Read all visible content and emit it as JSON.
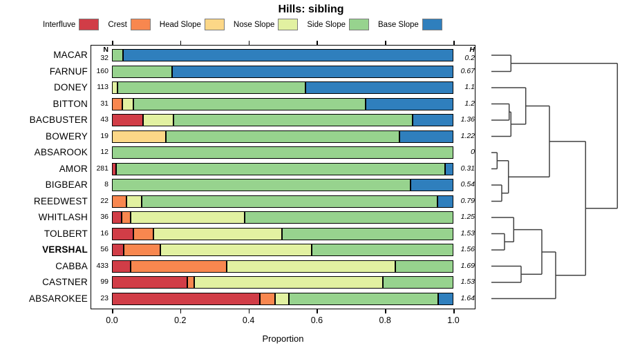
{
  "title": "Hills: sibling",
  "xlabel": "Proportion",
  "n_header": "N",
  "h_header": "H",
  "chart_data": {
    "type": "bar",
    "subtype": "horizontal-stacked-proportion-with-dendrogram",
    "title": "Hills: sibling",
    "xlabel": "Proportion",
    "xlim": [
      0.0,
      1.0
    ],
    "x_ticks": [
      "0.0",
      "0.2",
      "0.4",
      "0.6",
      "0.8",
      "1.0"
    ],
    "grid": false,
    "legend_position": "top",
    "legend": [
      {
        "label": "Interfluve",
        "color": "#d13d47"
      },
      {
        "label": "Crest",
        "color": "#f8874f"
      },
      {
        "label": "Head Slope",
        "color": "#fcd787"
      },
      {
        "label": "Nose Slope",
        "color": "#e2f1a1"
      },
      {
        "label": "Side Slope",
        "color": "#97d38e"
      },
      {
        "label": "Base Slope",
        "color": "#2f7fbd"
      }
    ],
    "categories": [
      "Interfluve",
      "Crest",
      "Head Slope",
      "Nose Slope",
      "Side Slope",
      "Base Slope"
    ],
    "rows": [
      {
        "label": "MACAR",
        "n": "32",
        "h": "0.2",
        "bold": false,
        "values": [
          0,
          0,
          0,
          0,
          0.032,
          0.968
        ]
      },
      {
        "label": "FARNUF",
        "n": "160",
        "h": "0.67",
        "bold": false,
        "values": [
          0,
          0,
          0,
          0,
          0.177,
          0.823
        ]
      },
      {
        "label": "DONEY",
        "n": "113",
        "h": "1.1",
        "bold": false,
        "values": [
          0,
          0,
          0,
          0.016,
          0.55,
          0.434
        ]
      },
      {
        "label": "BITTON",
        "n": "31",
        "h": "1.2",
        "bold": false,
        "values": [
          0,
          0.03,
          0,
          0.032,
          0.68,
          0.258
        ]
      },
      {
        "label": "BACBUSTER",
        "n": "43",
        "h": "1.36",
        "bold": false,
        "values": [
          0.092,
          0,
          0,
          0.088,
          0.7,
          0.12
        ]
      },
      {
        "label": "BOWERY",
        "n": "19",
        "h": "1.22",
        "bold": false,
        "values": [
          0,
          0,
          0.158,
          0,
          0.684,
          0.158
        ]
      },
      {
        "label": "ABSAROOK",
        "n": "12",
        "h": "0",
        "bold": false,
        "values": [
          0,
          0,
          0,
          0,
          1.0,
          0
        ]
      },
      {
        "label": "AMOR",
        "n": "281",
        "h": "0.31",
        "bold": false,
        "values": [
          0.013,
          0,
          0,
          0,
          0.962,
          0.025
        ]
      },
      {
        "label": "BIGBEAR",
        "n": "8",
        "h": "0.54",
        "bold": false,
        "values": [
          0,
          0,
          0,
          0,
          0.875,
          0.125
        ]
      },
      {
        "label": "REEDWEST",
        "n": "22",
        "h": "0.79",
        "bold": false,
        "values": [
          0,
          0.042,
          0,
          0.046,
          0.866,
          0.046
        ]
      },
      {
        "label": "WHITLASH",
        "n": "36",
        "h": "1.25",
        "bold": false,
        "values": [
          0.028,
          0.026,
          0,
          0.335,
          0.611,
          0
        ]
      },
      {
        "label": "TOLBERT",
        "n": "16",
        "h": "1.53",
        "bold": false,
        "values": [
          0.062,
          0.06,
          0,
          0.375,
          0.503,
          0
        ]
      },
      {
        "label": "VERSHAL",
        "n": "56",
        "h": "1.56",
        "bold": true,
        "values": [
          0.034,
          0.107,
          0,
          0.445,
          0.414,
          0
        ]
      },
      {
        "label": "CABBA",
        "n": "433",
        "h": "1.69",
        "bold": false,
        "values": [
          0.055,
          0.281,
          0,
          0.494,
          0.17,
          0
        ]
      },
      {
        "label": "CASTNER",
        "n": "99",
        "h": "1.53",
        "bold": false,
        "values": [
          0.221,
          0.019,
          0,
          0.554,
          0.206,
          0
        ]
      },
      {
        "label": "ABSAROKEE",
        "n": "23",
        "h": "1.64",
        "bold": false,
        "values": [
          0.433,
          0.044,
          0,
          0.042,
          0.436,
          0.045
        ]
      }
    ],
    "dendrogram": {
      "orientation": "leaves-left",
      "leaf_x": 21,
      "merges": [
        {
          "id": "M0",
          "a": "L0",
          "b": "L1",
          "x": 49.3
        },
        {
          "id": "M1",
          "a": "L3",
          "b": "L4",
          "x": 46.7
        },
        {
          "id": "M2",
          "a": "M1",
          "b": "L5",
          "x": 49.3
        },
        {
          "id": "M3",
          "a": "L2",
          "b": "M2",
          "x": 70.7
        },
        {
          "id": "M4",
          "a": "L6",
          "b": "L7",
          "x": 29.3
        },
        {
          "id": "M5",
          "a": "L8",
          "b": "L9",
          "x": 36
        },
        {
          "id": "M6",
          "a": "M4",
          "b": "M5",
          "x": 45.7
        },
        {
          "id": "M7",
          "a": "M3",
          "b": "M6",
          "x": 105
        },
        {
          "id": "M8",
          "a": "L11",
          "b": "L12",
          "x": 40
        },
        {
          "id": "M9",
          "a": "L10",
          "b": "M8",
          "x": 53.3
        },
        {
          "id": "M10",
          "a": "L13",
          "b": "L14",
          "x": 64
        },
        {
          "id": "M11",
          "a": "M9",
          "b": "M10",
          "x": 94
        },
        {
          "id": "M12",
          "a": "M11",
          "b": "L15",
          "x": 114
        },
        {
          "id": "M13",
          "a": "M7",
          "b": "M12",
          "x": 157.3
        },
        {
          "id": "M14",
          "a": "M0",
          "b": "M13",
          "x": 203.3
        }
      ]
    }
  }
}
